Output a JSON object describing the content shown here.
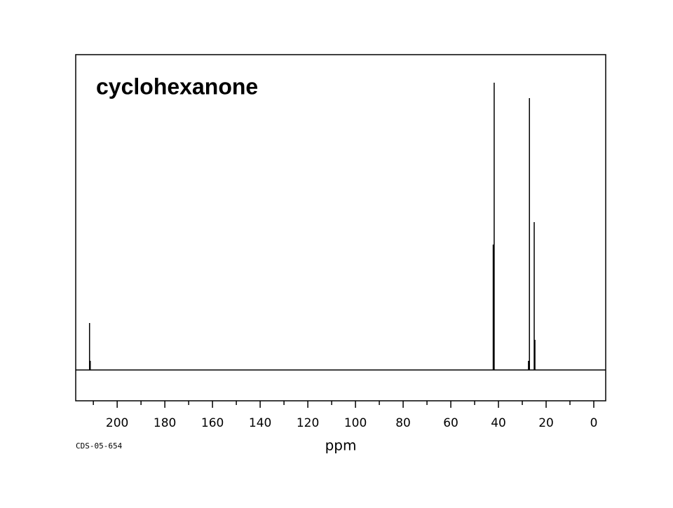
{
  "chart_data": {
    "type": "stem",
    "title": "cyclohexanone",
    "x_label": "ppm",
    "source": "CDS-05-654",
    "x": [
      211.6,
      211.3,
      42.2,
      41.8,
      27.4,
      27.0,
      25.0,
      24.7
    ],
    "values": [
      67,
      13,
      179,
      410,
      13,
      388,
      211,
      43
    ],
    "color": "#000000",
    "xlim": [
      217.4,
      -5
    ],
    "ylim": [
      -44,
      450
    ],
    "xticks": [
      200,
      180,
      160,
      140,
      120,
      100,
      80,
      60,
      40,
      20,
      0
    ],
    "xminorticks": [
      210,
      190,
      170,
      150,
      130,
      110,
      90,
      70,
      50,
      30,
      10
    ]
  }
}
